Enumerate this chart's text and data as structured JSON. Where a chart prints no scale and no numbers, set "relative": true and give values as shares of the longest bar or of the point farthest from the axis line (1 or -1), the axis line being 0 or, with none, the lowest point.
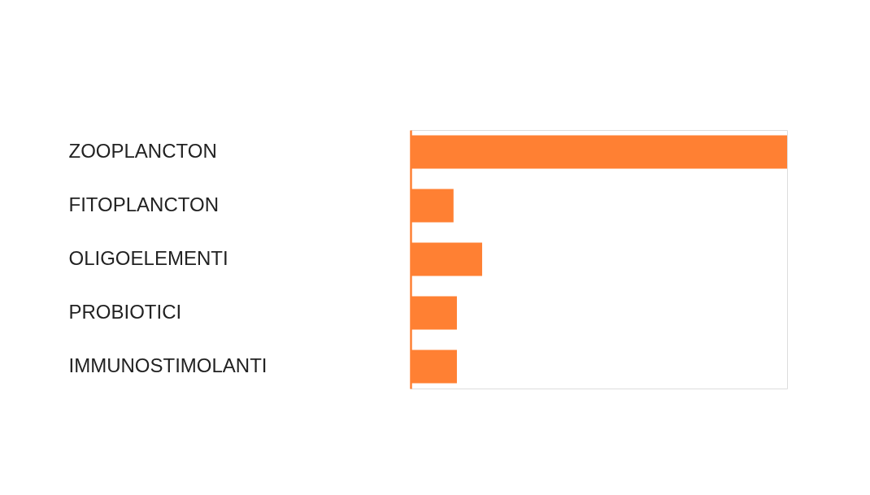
{
  "chart_data": {
    "type": "bar",
    "orientation": "horizontal",
    "relative": true,
    "categories": [
      "ZOOPLANCTON",
      "FITOPLANCTON",
      "OLIGOELEMENTI",
      "PROBIOTICI",
      "IMMUNOSTIMOLANTI"
    ],
    "values": [
      1,
      0.114,
      0.19,
      0.123,
      0.123
    ],
    "color": "#ff8033"
  }
}
